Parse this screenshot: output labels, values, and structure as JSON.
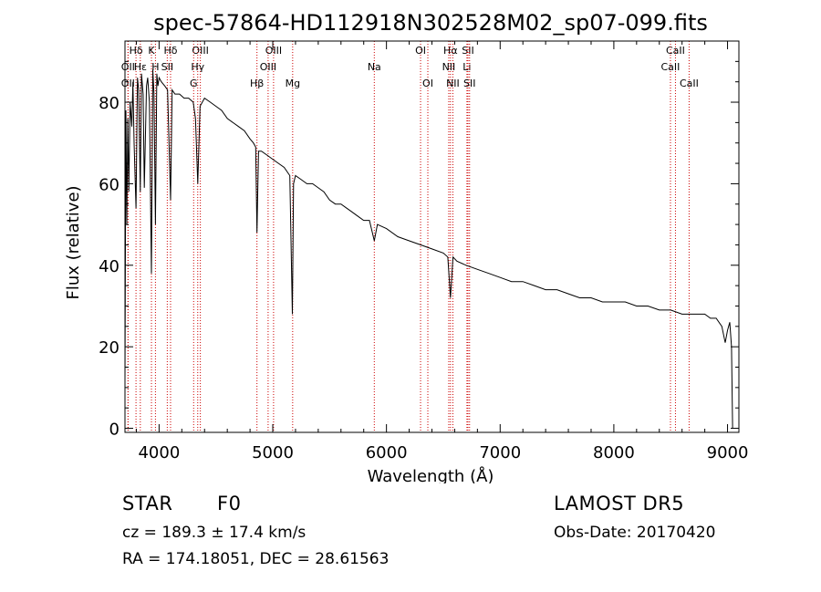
{
  "chart_data": {
    "type": "line",
    "title": "spec-57864-HD112918N302528M02_sp07-099.fits",
    "xlabel": "Wavelength (Å)",
    "ylabel": "Flux (relative)",
    "xlim": [
      3700,
      9100
    ],
    "ylim": [
      -1,
      95
    ],
    "xticks": [
      4000,
      5000,
      6000,
      7000,
      8000,
      9000
    ],
    "yticks": [
      0,
      20,
      40,
      60,
      80
    ],
    "grid": false,
    "line_color": "#000000",
    "marker_color": "#cc0000",
    "series": [
      {
        "x": [
          3700,
          3708,
          3716,
          3725,
          3734,
          3745,
          3760,
          3770,
          3780,
          3797,
          3810,
          3820,
          3835,
          3845,
          3860,
          3870,
          3889,
          3900,
          3915,
          3933,
          3945,
          3955,
          3968,
          3980,
          3990,
          4000,
          4020,
          4050,
          4075,
          4101,
          4115,
          4140,
          4180,
          4220,
          4260,
          4300,
          4320,
          4340,
          4360,
          4400,
          4450,
          4500,
          4550,
          4600,
          4650,
          4700,
          4750,
          4800,
          4830,
          4850,
          4861,
          4875,
          4900,
          4950,
          5000,
          5050,
          5100,
          5150,
          5172,
          5183,
          5200,
          5250,
          5300,
          5350,
          5400,
          5450,
          5500,
          5550,
          5600,
          5650,
          5700,
          5750,
          5800,
          5850,
          5893,
          5920,
          6000,
          6100,
          6200,
          6300,
          6400,
          6500,
          6540,
          6563,
          6585,
          6620,
          6700,
          6800,
          6900,
          7000,
          7100,
          7200,
          7300,
          7400,
          7500,
          7600,
          7700,
          7800,
          7900,
          8000,
          8100,
          8200,
          8300,
          8400,
          8500,
          8600,
          8700,
          8800,
          8850,
          8900,
          8950,
          8980,
          9000,
          9020,
          9035,
          9045,
          9050
        ],
        "y": [
          12,
          78,
          50,
          76,
          58,
          80,
          74,
          85,
          70,
          54,
          86,
          83,
          58,
          87,
          82,
          59,
          84,
          86,
          80,
          38,
          88,
          82,
          50,
          87,
          84,
          86,
          85,
          84,
          83,
          56,
          83,
          82,
          82,
          81,
          81,
          80,
          76,
          60,
          79,
          81,
          80,
          79,
          78,
          76,
          75,
          74,
          73,
          71,
          70,
          69,
          48,
          68,
          68,
          67,
          66,
          65,
          64,
          62,
          28,
          60,
          62,
          61,
          60,
          60,
          59,
          58,
          56,
          55,
          55,
          54,
          53,
          52,
          51,
          51,
          46,
          50,
          49,
          47,
          46,
          45,
          44,
          43,
          42,
          32,
          42,
          41,
          40,
          39,
          38,
          37,
          36,
          36,
          35,
          34,
          34,
          33,
          32,
          32,
          31,
          31,
          31,
          30,
          30,
          29,
          29,
          28,
          28,
          28,
          27,
          27,
          25,
          21,
          24,
          26,
          20,
          0,
          0
        ]
      }
    ],
    "line_markers": [
      {
        "label": "OII",
        "x": 3727,
        "row": 3
      },
      {
        "label": "OII",
        "x": 3727,
        "row": 2
      },
      {
        "label": "Hδ",
        "x": 3797,
        "row": 1
      },
      {
        "label": "Hε",
        "x": 3835,
        "row": 2
      },
      {
        "label": "K",
        "x": 3933,
        "row": 1
      },
      {
        "label": "H",
        "x": 3968,
        "row": 2
      },
      {
        "label": "Hδ",
        "x": 4101,
        "row": 1
      },
      {
        "label": "SII",
        "x": 4072,
        "row": 2
      },
      {
        "label": "OIII",
        "x": 4363,
        "row": 1
      },
      {
        "label": "Hγ",
        "x": 4340,
        "row": 2
      },
      {
        "label": "G",
        "x": 4304,
        "row": 3
      },
      {
        "label": "Hβ",
        "x": 4861,
        "row": 3
      },
      {
        "label": "OIII",
        "x": 5007,
        "row": 1
      },
      {
        "label": "OIII",
        "x": 4959,
        "row": 2
      },
      {
        "label": "Mg",
        "x": 5175,
        "row": 3
      },
      {
        "label": "Na",
        "x": 5893,
        "row": 2
      },
      {
        "label": "OI",
        "x": 6300,
        "row": 1
      },
      {
        "label": "OI",
        "x": 6364,
        "row": 3
      },
      {
        "label": "Hα",
        "x": 6563,
        "row": 1
      },
      {
        "label": "NII",
        "x": 6548,
        "row": 2
      },
      {
        "label": "NII",
        "x": 6584,
        "row": 3
      },
      {
        "label": "SII",
        "x": 6717,
        "row": 1
      },
      {
        "label": "Li",
        "x": 6708,
        "row": 2
      },
      {
        "label": "SII",
        "x": 6731,
        "row": 3
      },
      {
        "label": "CaII",
        "x": 8542,
        "row": 1
      },
      {
        "label": "CaII",
        "x": 8498,
        "row": 2
      },
      {
        "label": "CaII",
        "x": 8662,
        "row": 3
      }
    ]
  },
  "info": {
    "star_class": "STAR",
    "spec_type": "F0",
    "survey": "LAMOST DR5",
    "cz": "cz = 189.3 ± 17.4 km/s",
    "obs_date": "Obs-Date: 20170420",
    "radec": "RA = 174.18051, DEC =  28.61563"
  }
}
